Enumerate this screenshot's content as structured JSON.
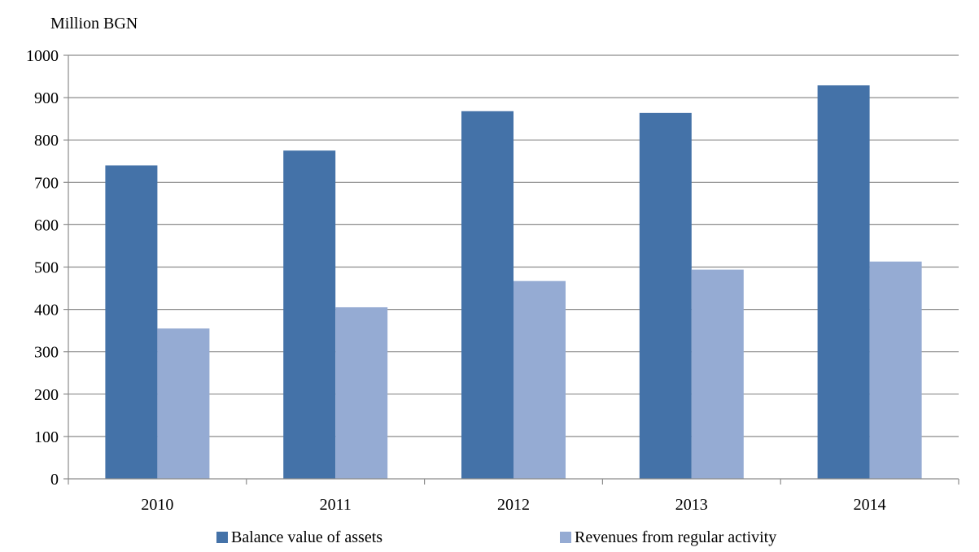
{
  "chart_data": {
    "type": "bar",
    "title": "",
    "ylabel": "Million BGN",
    "xlabel": "",
    "categories": [
      "2010",
      "2011",
      "2012",
      "2013",
      "2014"
    ],
    "series": [
      {
        "name": "Balance value of assets",
        "values": [
          740,
          775,
          868,
          864,
          929
        ]
      },
      {
        "name": "Revenues from regular activity",
        "values": [
          355,
          405,
          467,
          494,
          513
        ]
      }
    ],
    "ylim": [
      0,
      1000
    ],
    "yticks": [
      0,
      100,
      200,
      300,
      400,
      500,
      600,
      700,
      800,
      900,
      1000
    ],
    "grid": "horizontal",
    "legend_position": "bottom",
    "colors": [
      "#4472a8",
      "#95abd3"
    ]
  }
}
